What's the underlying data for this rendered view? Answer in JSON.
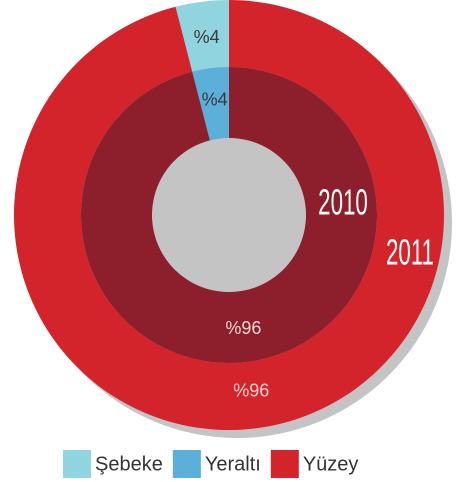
{
  "chart_data": {
    "type": "donut",
    "categories": [
      "Şebeke",
      "Yeraltı",
      "Yüzey"
    ],
    "colors": [
      "#8fd4df",
      "#5ab0d8",
      "#d3232b"
    ],
    "series": [
      {
        "name": "2011",
        "values": [
          4,
          null,
          96
        ],
        "value_labels": [
          "%4",
          null,
          "%96"
        ],
        "colors": [
          "#8fd4df",
          null,
          "#d3232b"
        ]
      },
      {
        "name": "2010",
        "values": [
          null,
          4,
          96
        ],
        "value_labels": [
          null,
          "%4",
          "%96"
        ],
        "colors": [
          null,
          "#5ab0d8",
          "#8c1f2b"
        ]
      }
    ]
  }
}
